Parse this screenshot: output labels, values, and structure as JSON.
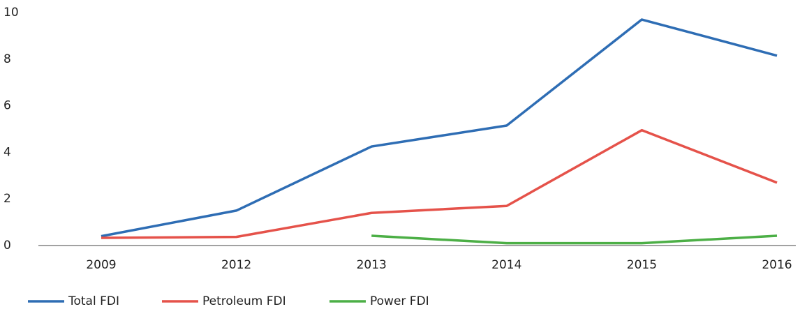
{
  "chart_data": {
    "type": "line",
    "categories": [
      "2009",
      "2012",
      "2013",
      "2014",
      "2015",
      "2016"
    ],
    "series": [
      {
        "name": "Total FDI",
        "color": "#2e6db4",
        "values": [
          0.4,
          1.5,
          4.25,
          5.15,
          9.7,
          8.15
        ]
      },
      {
        "name": "Petroleum FDI",
        "color": "#e5524a",
        "values": [
          0.33,
          0.37,
          1.4,
          1.7,
          4.95,
          2.7
        ]
      },
      {
        "name": "Power FDI",
        "color": "#4caf46",
        "values": [
          null,
          null,
          0.42,
          0.1,
          0.1,
          0.42
        ]
      }
    ],
    "ylim": [
      0,
      10
    ],
    "yticks": [
      0,
      2,
      4,
      6,
      8,
      10
    ],
    "grid": false,
    "legend": "bottom"
  }
}
